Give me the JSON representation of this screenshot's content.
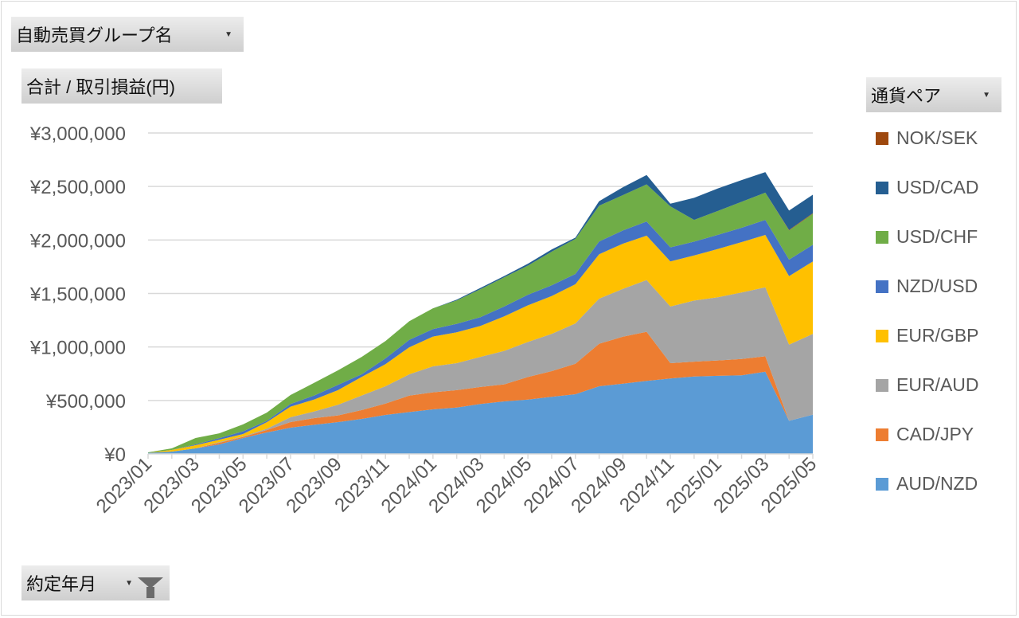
{
  "filters": {
    "group_button": "自動売買グループ名",
    "value_button": "合計 / 取引損益(円)",
    "legend_button": "通貨ペア",
    "axis_button": "約定年月",
    "dropdown_icon": "caret-down-icon",
    "filter_icon": "funnel-icon"
  },
  "chart_data": {
    "type": "area",
    "stacked": true,
    "title": "",
    "xlabel": "",
    "ylabel": "",
    "ylim": [
      0,
      3000000
    ],
    "yticks": [
      0,
      500000,
      1000000,
      1500000,
      2000000,
      2500000,
      3000000
    ],
    "ytick_labels": [
      "¥0",
      "¥500,000",
      "¥1,000,000",
      "¥1,500,000",
      "¥2,000,000",
      "¥2,500,000",
      "¥3,000,000"
    ],
    "grid": true,
    "legend_position": "right",
    "categories": [
      "2023/01",
      "2023/02",
      "2023/03",
      "2023/04",
      "2023/05",
      "2023/06",
      "2023/07",
      "2023/08",
      "2023/09",
      "2023/10",
      "2023/11",
      "2023/12",
      "2024/01",
      "2024/02",
      "2024/03",
      "2024/04",
      "2024/05",
      "2024/06",
      "2024/07",
      "2024/08",
      "2024/09",
      "2024/10",
      "2024/11",
      "2024/12",
      "2025/01",
      "2025/02",
      "2025/03",
      "2025/04",
      "2025/05"
    ],
    "series": [
      {
        "name": "AUD/NZD",
        "color": "#5B9BD5",
        "values": [
          10000,
          22000,
          52000,
          89000,
          149000,
          201000,
          246000,
          273000,
          298000,
          328000,
          365000,
          392000,
          417000,
          434000,
          467000,
          491000,
          508000,
          534000,
          558000,
          633000,
          657000,
          683000,
          705000,
          724000,
          730000,
          735000,
          769000,
          310000,
          367000
        ]
      },
      {
        "name": "CAD/JPY",
        "color": "#ED7D31",
        "values": [
          0,
          0,
          0,
          15000,
          10000,
          22000,
          52000,
          62000,
          62000,
          82000,
          106000,
          153000,
          159000,
          162000,
          159000,
          159000,
          211000,
          240000,
          285000,
          397000,
          439000,
          459000,
          144000,
          139000,
          144000,
          153000,
          144000,
          0,
          0
        ]
      },
      {
        "name": "EUR/AUD",
        "color": "#A5A5A5",
        "values": [
          0,
          0,
          0,
          7000,
          5000,
          12000,
          45000,
          62000,
          100000,
          136000,
          162000,
          199000,
          243000,
          253000,
          281000,
          313000,
          328000,
          348000,
          377000,
          422000,
          447000,
          484000,
          529000,
          571000,
          591000,
          621000,
          645000,
          712000,
          755000
        ]
      },
      {
        "name": "EUR/GBP",
        "color": "#FFC000",
        "values": [
          0,
          15000,
          30000,
          22000,
          22000,
          62000,
          99000,
          112000,
          136000,
          174000,
          206000,
          253000,
          278000,
          288000,
          290000,
          323000,
          342000,
          354000,
          367000,
          415000,
          422000,
          415000,
          422000,
          421000,
          451000,
          471000,
          489000,
          640000,
          677000
        ]
      },
      {
        "name": "NZD/USD",
        "color": "#4472C4",
        "values": [
          0,
          0,
          7000,
          15000,
          25000,
          12000,
          25000,
          37000,
          50000,
          25000,
          54000,
          69000,
          70000,
          79000,
          82000,
          92000,
          99000,
          100000,
          95000,
          119000,
          124000,
          132000,
          131000,
          130000,
          132000,
          134000,
          141000,
          154000,
          156000
        ]
      },
      {
        "name": "USD/CHF",
        "color": "#70AD47",
        "values": [
          5000,
          15000,
          60000,
          45000,
          65000,
          77000,
          84000,
          119000,
          136000,
          162000,
          162000,
          174000,
          194000,
          219000,
          261000,
          273000,
          273000,
          315000,
          328000,
          335000,
          330000,
          347000,
          383000,
          203000,
          223000,
          243000,
          255000,
          273000,
          290000
        ]
      },
      {
        "name": "NOK/SEK",
        "color": "#9E480E",
        "values": [
          0,
          0,
          0,
          0,
          0,
          0,
          0,
          0,
          0,
          0,
          0,
          0,
          0,
          0,
          0,
          0,
          0,
          0,
          0,
          0,
          0,
          0,
          0,
          0,
          0,
          0,
          0,
          5000,
          5000
        ]
      },
      {
        "name": "USD/CAD",
        "color": "#255E91",
        "values": [
          0,
          0,
          0,
          0,
          0,
          0,
          0,
          0,
          0,
          0,
          0,
          0,
          0,
          7000,
          12000,
          12000,
          17000,
          20000,
          12000,
          42000,
          74000,
          87000,
          25000,
          206000,
          211000,
          203000,
          191000,
          181000,
          173000
        ]
      }
    ],
    "legend_order": [
      "NOK/SEK",
      "USD/CAD",
      "USD/CHF",
      "NZD/USD",
      "EUR/GBP",
      "EUR/AUD",
      "CAD/JPY",
      "AUD/NZD"
    ]
  }
}
